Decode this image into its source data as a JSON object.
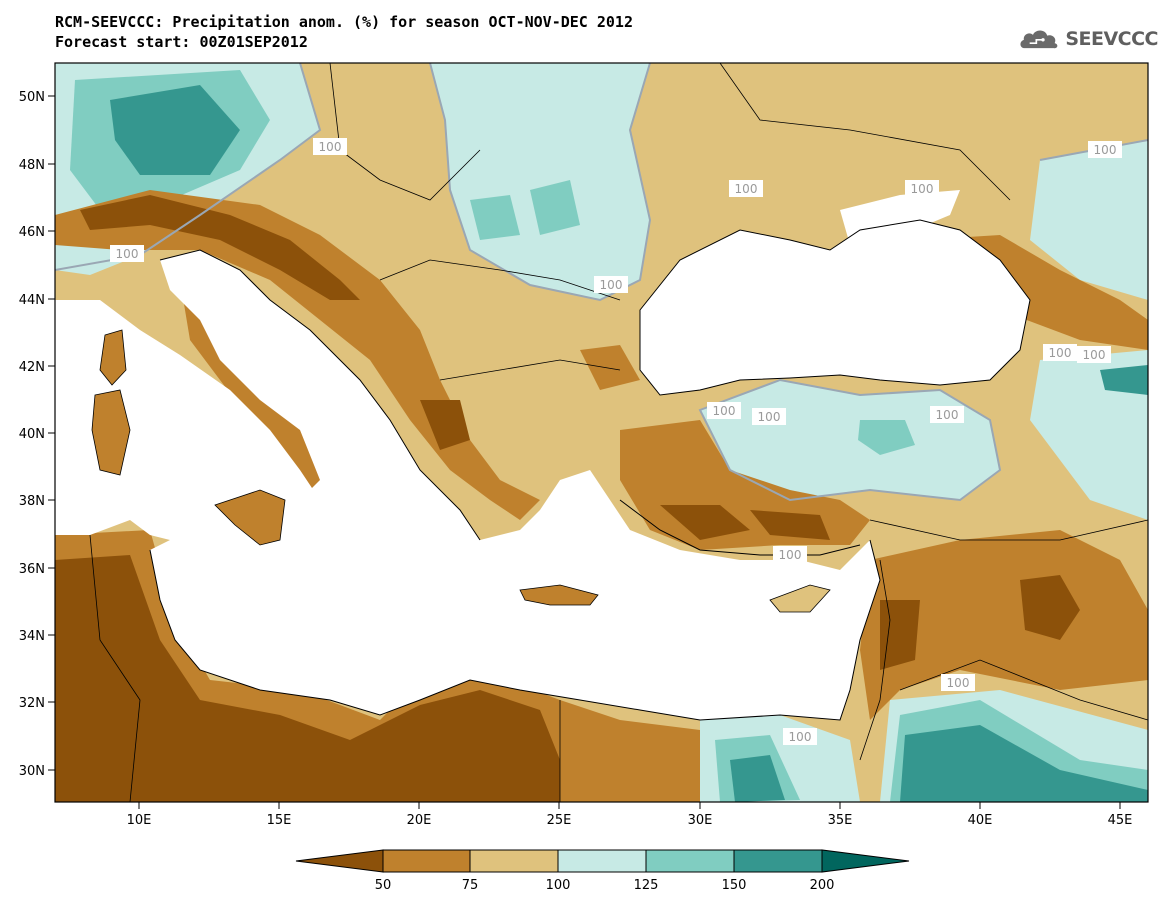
{
  "header": {
    "title_line1": "RCM-SEEVCCC: Precipitation anom. (%) for season OCT-NOV-DEC 2012",
    "title_line2": "Forecast start: 00Z01SEP2012"
  },
  "logo": {
    "icon": "cloud-logo-icon",
    "text": "SEEVCCC"
  },
  "map": {
    "lon_range": [
      7,
      46
    ],
    "lat_range": [
      29,
      51
    ],
    "lat_ticks": [
      "50N",
      "48N",
      "46N",
      "44N",
      "42N",
      "40N",
      "38N",
      "36N",
      "34N",
      "32N",
      "30N"
    ],
    "lon_ticks": [
      "10E",
      "15E",
      "20E",
      "25E",
      "30E",
      "35E",
      "40E",
      "45E"
    ],
    "contour_labels": [
      "100",
      "100",
      "100",
      "100",
      "100",
      "100",
      "100",
      "100",
      "100",
      "100",
      "100",
      "100",
      "100",
      "100"
    ]
  },
  "colorbar": {
    "levels": [
      "50",
      "75",
      "100",
      "125",
      "150",
      "200"
    ],
    "colors": [
      "#8c510a",
      "#bf812d",
      "#dfc27d",
      "#c7eae5",
      "#80cdc1",
      "#35978f",
      "#01665e"
    ]
  }
}
